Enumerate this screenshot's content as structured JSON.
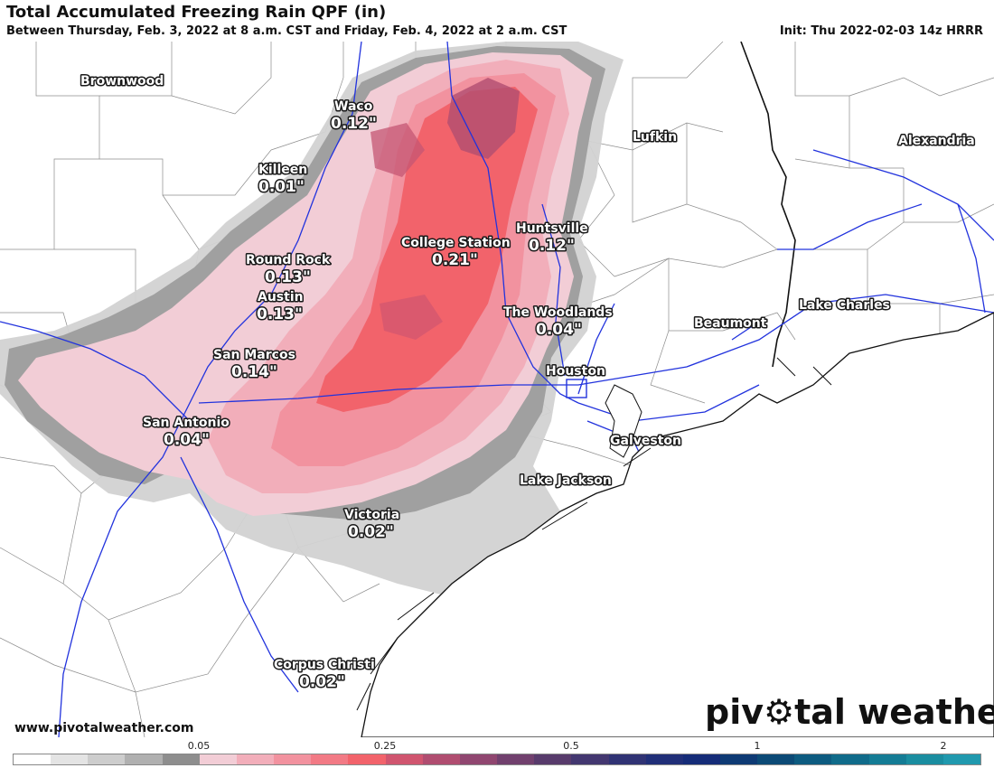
{
  "header": {
    "title": "Total Accumulated Freezing Rain QPF (in)",
    "subtitle": "Between Thursday, Feb. 3, 2022 at 8 a.m. CST and Friday, Feb. 4, 2022 at 2 a.m. CST",
    "init": "Init: Thu 2022-02-03 14z HRRR"
  },
  "cities": [
    {
      "name": "Brownwood",
      "amount": ""
    },
    {
      "name": "Waco",
      "amount": "0.12\""
    },
    {
      "name": "Killeen",
      "amount": "0.01\""
    },
    {
      "name": "Lufkin",
      "amount": ""
    },
    {
      "name": "Alexandria",
      "amount": ""
    },
    {
      "name": "College Station",
      "amount": "0.21\""
    },
    {
      "name": "Huntsville",
      "amount": "0.12\""
    },
    {
      "name": "Round Rock",
      "amount": "0.13\""
    },
    {
      "name": "Austin",
      "amount": "0.13\""
    },
    {
      "name": "The Woodlands",
      "amount": "0.04\""
    },
    {
      "name": "Beaumont",
      "amount": ""
    },
    {
      "name": "Lake Charles",
      "amount": ""
    },
    {
      "name": "San Marcos",
      "amount": "0.14\""
    },
    {
      "name": "Houston",
      "amount": ""
    },
    {
      "name": "San Antonio",
      "amount": "0.04\""
    },
    {
      "name": "Galveston",
      "amount": ""
    },
    {
      "name": "Lake Jackson",
      "amount": ""
    },
    {
      "name": "Victoria",
      "amount": "0.02\""
    },
    {
      "name": "Corpus Christi",
      "amount": "0.02\""
    }
  ],
  "footer": {
    "website": "www.pivotalweather.com",
    "logo_text_a": "piv",
    "logo_text_b": "tal weather"
  },
  "legend": {
    "tick_labels": [
      "0.05",
      "0.25",
      "0.5",
      "1",
      "2"
    ],
    "colors": [
      "#ffffff",
      "#e4e4e4",
      "#cdcdcd",
      "#b0b0b0",
      "#8e8e8e",
      "#f2cdd6",
      "#f2aeba",
      "#f2929f",
      "#f27a85",
      "#f2636b",
      "#d0556f",
      "#b04d70",
      "#904670",
      "#71406e",
      "#583b6c",
      "#433770",
      "#303374",
      "#202f78",
      "#152c78",
      "#0e3a74",
      "#0c4a76",
      "#0d5b80",
      "#106b8a",
      "#147c95",
      "#1a8da0",
      "#2099ae"
    ]
  },
  "colors": {
    "rain_light": "#f2cdd6",
    "rain_mid": "#f2929f",
    "rain_heavy": "#f2636b",
    "rain_max": "#b04d70",
    "gray_fringe": "#8e8e8e"
  }
}
